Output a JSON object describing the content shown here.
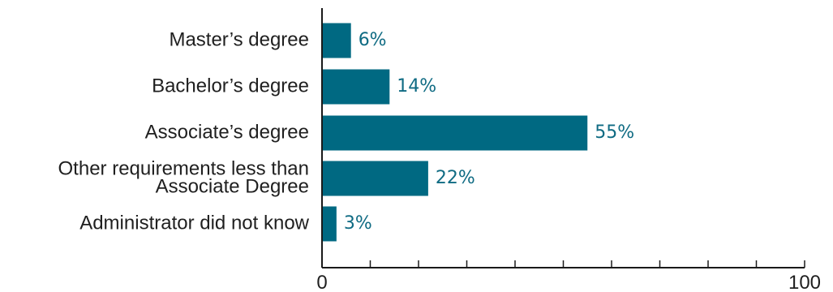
{
  "chart_data": {
    "type": "bar",
    "orientation": "horizontal",
    "categories": [
      "Master’s degree",
      "Bachelor’s degree",
      "Associate’s degree",
      "Other requirements less than\nAssociate Degree",
      "Administrator did not know"
    ],
    "values": [
      6,
      14,
      55,
      22,
      3
    ],
    "value_labels": [
      "6%",
      "14%",
      "55%",
      "22%",
      "3%"
    ],
    "x_ticks": [
      "0",
      "100"
    ],
    "xlim": [
      0,
      100
    ],
    "grid": false,
    "colors": {
      "bar": "#006982",
      "value_text": "#0f6b83",
      "axis": "#1a1a1a",
      "text": "#1f1f1f"
    }
  }
}
